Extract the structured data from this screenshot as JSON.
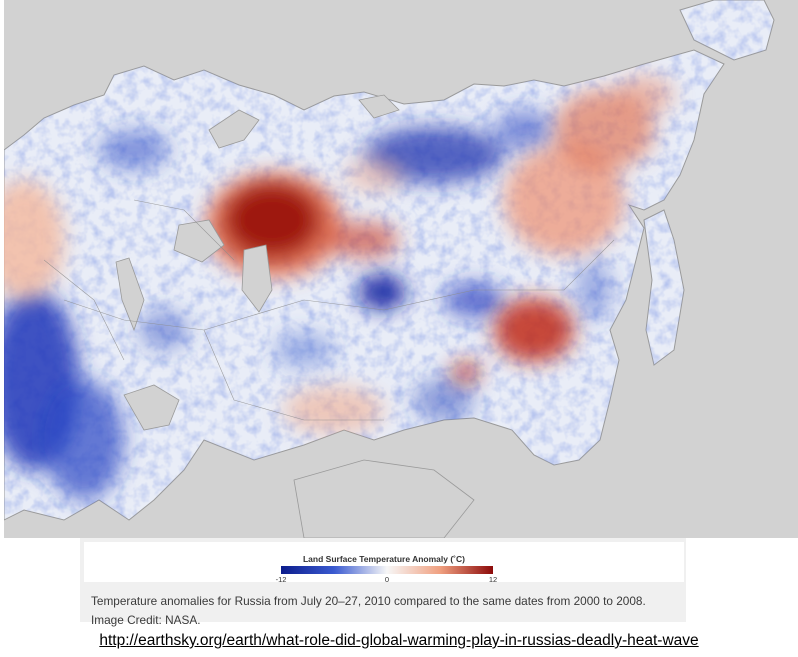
{
  "map": {
    "background_color": "#d2d2d2",
    "land_base_color": "#e8ecf6"
  },
  "legend": {
    "title": "Land Surface Temperature Anomaly (˚C)",
    "min_label": "-12",
    "mid_label": "0",
    "max_label": "12",
    "range": [
      -12,
      12
    ],
    "colors": {
      "cold_deep": "#0c1c8c",
      "cold": "#3a5ad0",
      "neutral": "#f7f7f7",
      "warm": "#f0a080",
      "hot_deep": "#8c0a0a"
    }
  },
  "caption": {
    "text": "Temperature anomalies for Russia from July 20–27, 2010 compared to the same dates from 2000 to 2008. Image Credit: NASA."
  },
  "source": {
    "url": "http://earthsky.org/earth/what-role-did-global-warming-play-in-russias-deadly-heat-wave"
  }
}
